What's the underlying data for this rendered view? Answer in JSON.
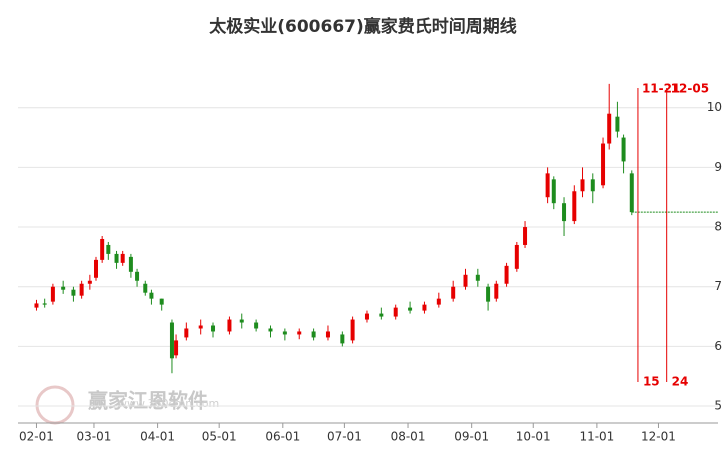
{
  "chart_data": {
    "type": "candlestick",
    "title": "太极实业(600667)赢家费氏时间周期线",
    "x": [
      "02-01",
      "02-05",
      "02-09",
      "02-14",
      "02-19",
      "02-23",
      "02-27",
      "03-02",
      "03-05",
      "03-08",
      "03-12",
      "03-15",
      "03-19",
      "03-22",
      "03-26",
      "03-29",
      "04-03",
      "04-08",
      "04-10",
      "04-15",
      "04-22",
      "04-28",
      "05-06",
      "05-12",
      "05-19",
      "05-26",
      "06-02",
      "06-09",
      "06-16",
      "06-23",
      "06-30",
      "07-05",
      "07-12",
      "07-19",
      "07-26",
      "08-02",
      "08-09",
      "08-16",
      "08-23",
      "08-29",
      "09-04",
      "09-09",
      "09-13",
      "09-18",
      "09-23",
      "09-27",
      "10-08",
      "10-11",
      "10-16",
      "10-21",
      "10-25",
      "10-30",
      "11-04",
      "11-07",
      "11-11",
      "11-14",
      "11-18"
    ],
    "open": [
      6.65,
      6.72,
      6.75,
      7.0,
      6.95,
      6.85,
      7.05,
      7.15,
      7.45,
      7.7,
      7.55,
      7.4,
      7.5,
      7.25,
      7.05,
      6.9,
      6.8,
      6.4,
      5.85,
      6.15,
      6.3,
      6.35,
      6.25,
      6.45,
      6.4,
      6.3,
      6.25,
      6.2,
      6.25,
      6.15,
      6.2,
      6.1,
      6.45,
      6.55,
      6.5,
      6.65,
      6.6,
      6.7,
      6.8,
      7.0,
      7.2,
      7.0,
      6.8,
      7.05,
      7.3,
      7.7,
      8.5,
      8.8,
      8.4,
      8.1,
      8.6,
      8.8,
      8.7,
      9.4,
      9.85,
      9.5,
      8.9
    ],
    "close": [
      6.72,
      6.7,
      7.0,
      6.95,
      6.85,
      7.05,
      7.1,
      7.45,
      7.8,
      7.55,
      7.4,
      7.55,
      7.25,
      7.1,
      6.9,
      6.8,
      6.7,
      5.8,
      6.1,
      6.3,
      6.35,
      6.25,
      6.45,
      6.4,
      6.3,
      6.25,
      6.2,
      6.25,
      6.15,
      6.25,
      6.05,
      6.45,
      6.55,
      6.5,
      6.65,
      6.6,
      6.7,
      6.8,
      7.0,
      7.2,
      7.1,
      6.75,
      7.05,
      7.35,
      7.7,
      8.0,
      8.9,
      8.4,
      8.1,
      8.6,
      8.8,
      8.6,
      9.4,
      9.9,
      9.6,
      9.1,
      8.25
    ],
    "high": [
      6.78,
      6.8,
      7.05,
      7.1,
      7.0,
      7.1,
      7.2,
      7.5,
      7.85,
      7.75,
      7.6,
      7.6,
      7.55,
      7.3,
      7.1,
      6.95,
      6.8,
      6.45,
      6.2,
      6.4,
      6.45,
      6.4,
      6.5,
      6.55,
      6.45,
      6.35,
      6.3,
      6.3,
      6.3,
      6.35,
      6.25,
      6.5,
      6.6,
      6.65,
      6.7,
      6.75,
      6.75,
      6.9,
      7.1,
      7.3,
      7.3,
      7.05,
      7.1,
      7.4,
      7.75,
      8.1,
      9.0,
      8.85,
      8.5,
      8.7,
      9.0,
      8.9,
      9.5,
      10.4,
      10.1,
      9.55,
      8.95
    ],
    "low": [
      6.6,
      6.65,
      6.7,
      6.88,
      6.75,
      6.8,
      6.95,
      7.1,
      7.4,
      7.45,
      7.3,
      7.35,
      7.15,
      7.0,
      6.85,
      6.7,
      6.6,
      5.55,
      5.8,
      6.1,
      6.2,
      6.15,
      6.2,
      6.3,
      6.25,
      6.15,
      6.1,
      6.12,
      6.1,
      6.1,
      6.0,
      6.05,
      6.4,
      6.45,
      6.45,
      6.55,
      6.55,
      6.65,
      6.75,
      6.95,
      7.0,
      6.6,
      6.75,
      7.0,
      7.25,
      7.65,
      8.4,
      8.3,
      7.85,
      8.05,
      8.5,
      8.4,
      8.65,
      9.3,
      9.5,
      8.9,
      8.2
    ],
    "up_color": "#e60000",
    "down_color": "#1e8c1e",
    "xlim": [
      "01-23",
      "12-30"
    ],
    "xticks": [
      "02-01",
      "03-01",
      "04-01",
      "05-01",
      "06-01",
      "07-01",
      "08-01",
      "09-01",
      "10-01",
      "11-01",
      "12-01"
    ],
    "ylim": [
      4.85,
      10.8
    ],
    "yticks": [
      5,
      6,
      7,
      8,
      9,
      10
    ],
    "grid": true,
    "cycle_lines": [
      {
        "date": "11-21",
        "label": "11-21",
        "count": "15"
      },
      {
        "date": "12-05",
        "label": "12-05",
        "count": "24"
      }
    ],
    "watermark": "赢家江恩软件",
    "watermark_url": "www.360cmn.com"
  }
}
